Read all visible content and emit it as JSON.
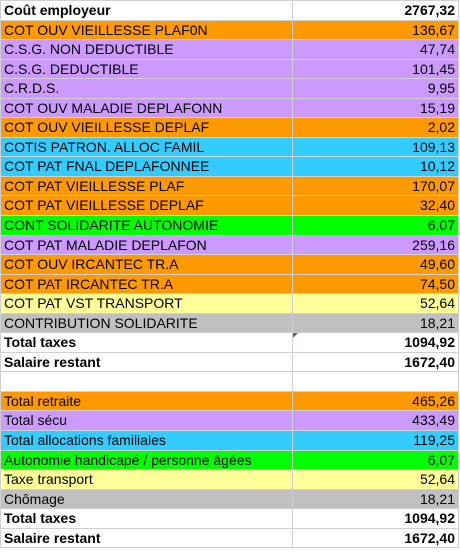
{
  "palette": {
    "white": "#ffffff",
    "orange": "#ff9900",
    "purple": "#cc99ff",
    "cyan": "#33ccff",
    "green": "#00ff00",
    "yellow": "#ffff99",
    "gray": "#c0c0c0"
  },
  "rows_top": [
    {
      "label": "Coût employeur",
      "value": "2767,32",
      "color": "white",
      "bold": true
    },
    {
      "label": "COT OUV VIEILLESSE PLAF0N",
      "value": "136,67",
      "color": "orange"
    },
    {
      "label": "C.S.G. NON DEDUCTIBLE",
      "value": "47,74",
      "color": "purple"
    },
    {
      "label": "C.S.G. DEDUCTIBLE",
      "value": "101,45",
      "color": "purple"
    },
    {
      "label": "C.R.D.S.",
      "value": "9,95",
      "color": "purple"
    },
    {
      "label": "COT OUV MALADIE DEPLAFONN",
      "value": "15,19",
      "color": "purple"
    },
    {
      "label": "COT OUV VIEILLESSE DEPLAF",
      "value": "2,02",
      "color": "orange"
    },
    {
      "label": "COTIS PATRON. ALLOC FAMIL",
      "value": "109,13",
      "color": "cyan"
    },
    {
      "label": "COT PAT FNAL DEPLAFONNEE",
      "value": "10,12",
      "color": "cyan"
    },
    {
      "label": "COT PAT VIEILLESSE PLAF",
      "value": "170,07",
      "color": "orange"
    },
    {
      "label": "COT PAT VIEILLESSE DEPLAF",
      "value": "32,40",
      "color": "orange"
    },
    {
      "label": "CONT SOLIDARITE AUTONOMIE",
      "value": "6,07",
      "color": "green"
    },
    {
      "label": "COT PAT MALADIE DEPLAFON",
      "value": "259,16",
      "color": "purple"
    },
    {
      "label": "COT OUV IRCANTEC TR.A",
      "value": "49,60",
      "color": "orange"
    },
    {
      "label": "COT PAT IRCANTEC TR.A",
      "value": "74,50",
      "color": "orange"
    },
    {
      "label": "COT PAT VST TRANSPORT",
      "value": "52,64",
      "color": "yellow"
    },
    {
      "label": "CONTRIBUTION SOLIDARITE",
      "value": "18,21",
      "color": "gray"
    },
    {
      "label": "Total taxes",
      "value": "1094,92",
      "color": "white",
      "bold": true
    },
    {
      "label": "Salaire restant",
      "value": "1672,40",
      "color": "white",
      "bold": true
    }
  ],
  "rows_bottom": [
    {
      "label": "Total retraite",
      "value": "465,26",
      "color": "orange"
    },
    {
      "label": "Total sécu",
      "value": "433,49",
      "color": "purple"
    },
    {
      "label": "Total allocations familiales",
      "value": "119,25",
      "color": "cyan"
    },
    {
      "label": "Autonomie handicapé / personne âgées",
      "value": "6,07",
      "color": "green"
    },
    {
      "label": "Taxe transport",
      "value": "52,64",
      "color": "yellow"
    },
    {
      "label": "Chômage",
      "value": "18,21",
      "color": "gray"
    },
    {
      "label": "Total taxes",
      "value": "1094,92",
      "color": "white",
      "bold": true
    },
    {
      "label": "Salaire restant",
      "value": "1672,40",
      "color": "white",
      "bold": true
    }
  ]
}
